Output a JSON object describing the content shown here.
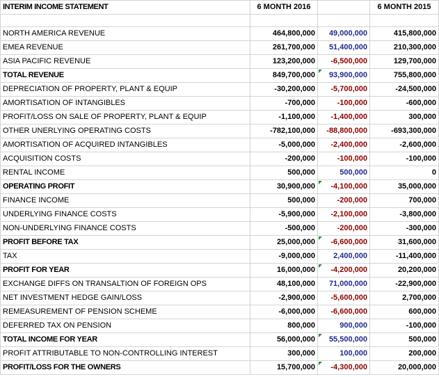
{
  "header": {
    "title": "INTERIM INCOME STATEMENT",
    "col_2016": "6 MONTH 2016",
    "col_diff": "",
    "col_2015": "6 MONTH 2015"
  },
  "colors": {
    "positive_diff": "#1f2a8c",
    "negative_diff": "#8b0000",
    "error_flag": "#2e8b2e"
  },
  "rows": [
    {
      "label": "NORTH AMERICA REVENUE",
      "v2016": "464,800,000",
      "diff": "49,000,000",
      "v2015": "415,800,000"
    },
    {
      "label": "EMEA REVENUE",
      "v2016": "261,700,000",
      "diff": "51,400,000",
      "v2015": "210,300,000"
    },
    {
      "label": "ASIA PACIFIC REVENUE",
      "v2016": "123,200,000",
      "diff": "-6,500,000",
      "v2015": "129,700,000"
    },
    {
      "label": "TOTAL REVENUE",
      "v2016": "849,700,000",
      "diff": "93,900,000",
      "v2015": "755,800,000"
    },
    {
      "label": "DEPRECIATION OF PROPERTY, PLANT & EQUIP",
      "v2016": "-30,200,000",
      "diff": "-5,700,000",
      "v2015": "-24,500,000"
    },
    {
      "label": "AMORTISATION OF INTANGIBLES",
      "v2016": "-700,000",
      "diff": "-100,000",
      "v2015": "-600,000"
    },
    {
      "label": "PROFIT/LOSS ON SALE OF PROPERTY, PLANT & EQUIP",
      "v2016": "-1,100,000",
      "diff": "-1,400,000",
      "v2015": "300,000"
    },
    {
      "label": "OTHER UNERLYING OPERATING COSTS",
      "v2016": "-782,100,000",
      "diff": "-88,800,000",
      "v2015": "-693,300,000"
    },
    {
      "label": "AMORTISATION OF ACQUIRED INTANGIBLES",
      "v2016": "-5,000,000",
      "diff": "-2,400,000",
      "v2015": "-2,600,000"
    },
    {
      "label": "ACQUISITION COSTS",
      "v2016": "-200,000",
      "diff": "-100,000",
      "v2015": "-100,000"
    },
    {
      "label": "RENTAL INCOME",
      "v2016": "500,000",
      "diff": "500,000",
      "v2015": "0"
    },
    {
      "label": "OPERATING PROFIT",
      "v2016": "30,900,000",
      "diff": "-4,100,000",
      "v2015": "35,000,000"
    },
    {
      "label": "FINANCE INCOME",
      "v2016": "500,000",
      "diff": "-200,000",
      "v2015": "700,000"
    },
    {
      "label": "UNDERLYING FINANCE COSTS",
      "v2016": "-5,900,000",
      "diff": "-2,100,000",
      "v2015": "-3,800,000"
    },
    {
      "label": "NON-UNDERLYING FINANCE COSTS",
      "v2016": "-500,000",
      "diff": "-200,000",
      "v2015": "-300,000"
    },
    {
      "label": "PROFIT BEFORE TAX",
      "v2016": "25,000,000",
      "diff": "-6,600,000",
      "v2015": "31,600,000"
    },
    {
      "label": "TAX",
      "v2016": "-9,000,000",
      "diff": "2,400,000",
      "v2015": "-11,400,000"
    },
    {
      "label": "PROFIT FOR YEAR",
      "v2016": "16,000,000",
      "diff": "-4,200,000",
      "v2015": "20,200,000"
    },
    {
      "label": "EXCHANGE DIFFS ON TRANSALTION OF FOREIGN OPS",
      "v2016": "48,100,000",
      "diff": "71,000,000",
      "v2015": "-22,900,000"
    },
    {
      "label": "NET INVESTMENT HEDGE GAIN/LOSS",
      "v2016": "-2,900,000",
      "diff": "-5,600,000",
      "v2015": "2,700,000"
    },
    {
      "label": "REMEASUREMENT OF PENSION SCHEME",
      "v2016": "-6,000,000",
      "diff": "-6,600,000",
      "v2015": "600,000"
    },
    {
      "label": "DEFERRED TAX ON PENSION",
      "v2016": "800,000",
      "diff": "900,000",
      "v2015": "-100,000"
    },
    {
      "label": "TOTAL INCOME FOR YEAR",
      "v2016": "56,000,000",
      "diff": "55,500,000",
      "v2015": "500,000"
    },
    {
      "label": "PROFIT ATTRIBUTABLE TO NON-CONTROLLING INTEREST",
      "v2016": "300,000",
      "diff": "100,000",
      "v2015": "200,000"
    },
    {
      "label": "PROFIT/LOSS FOR THE OWNERS",
      "v2016": "15,700,000",
      "diff": "-4,300,000",
      "v2015": "20,000,000"
    }
  ]
}
